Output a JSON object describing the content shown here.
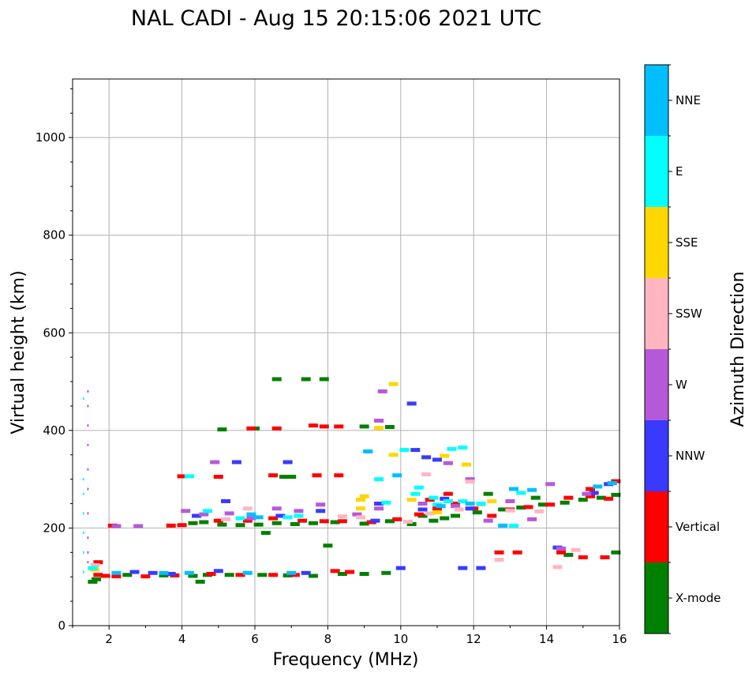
{
  "chart_data": {
    "type": "scatter",
    "title": "NAL CADI - Aug 15 20:15:06 2021 UTC",
    "xlabel": "Frequency (MHz)",
    "ylabel": "Virtual height (km)",
    "xlim": [
      1,
      16
    ],
    "ylim": [
      0,
      1120
    ],
    "x_ticks": [
      2,
      4,
      6,
      8,
      10,
      12,
      14,
      16
    ],
    "x_tick_labels": [
      "2",
      "4",
      "6",
      "8",
      "10",
      "12",
      "14",
      "16"
    ],
    "y_ticks": [
      0,
      200,
      400,
      600,
      800,
      1000
    ],
    "y_tick_labels": [
      "0",
      "200",
      "400",
      "600",
      "800",
      "1000"
    ],
    "grid": true,
    "colorbar": {
      "label": "Azimuth Direction",
      "categories": [
        {
          "name": "X-mode",
          "color": "#008000"
        },
        {
          "name": "Vertical",
          "color": "#ff0000"
        },
        {
          "name": "NNW",
          "color": "#3a3aff"
        },
        {
          "name": "W",
          "color": "#b659d9"
        },
        {
          "name": "SSW",
          "color": "#ffb6c1"
        },
        {
          "name": "SSE",
          "color": "#ffd700"
        },
        {
          "name": "E",
          "color": "#00ffff"
        },
        {
          "name": "NNE",
          "color": "#00bfff"
        }
      ]
    },
    "series": [
      {
        "name": "X-mode",
        "points": [
          [
            1.55,
            90
          ],
          [
            1.65,
            95
          ],
          [
            2.5,
            104
          ],
          [
            3.5,
            103
          ],
          [
            4.3,
            102
          ],
          [
            4.7,
            104
          ],
          [
            5.3,
            104
          ],
          [
            6.2,
            104
          ],
          [
            6.9,
            103
          ],
          [
            7.6,
            102
          ],
          [
            8.4,
            106
          ],
          [
            9.0,
            106
          ],
          [
            9.6,
            108
          ],
          [
            4.3,
            210
          ],
          [
            4.6,
            212
          ],
          [
            5.1,
            207
          ],
          [
            5.6,
            206
          ],
          [
            6.1,
            207
          ],
          [
            6.6,
            210
          ],
          [
            7.1,
            208
          ],
          [
            7.6,
            210
          ],
          [
            8.2,
            212
          ],
          [
            9.0,
            209
          ],
          [
            9.7,
            214
          ],
          [
            10.3,
            208
          ],
          [
            10.9,
            215
          ],
          [
            11.5,
            225
          ],
          [
            12.1,
            232
          ],
          [
            12.8,
            238
          ],
          [
            13.3,
            242
          ],
          [
            13.9,
            248
          ],
          [
            14.5,
            252
          ],
          [
            15.0,
            258
          ],
          [
            15.5,
            262
          ],
          [
            15.9,
            268
          ],
          [
            6.6,
            505
          ],
          [
            7.4,
            505
          ],
          [
            7.9,
            505
          ],
          [
            9.0,
            408
          ],
          [
            9.7,
            407
          ],
          [
            6.8,
            305
          ],
          [
            7.0,
            305
          ],
          [
            6.0,
            404
          ],
          [
            5.1,
            402
          ],
          [
            6.3,
            190
          ],
          [
            15.9,
            150
          ],
          [
            14.6,
            145
          ],
          [
            8.0,
            164
          ],
          [
            4.5,
            90
          ],
          [
            10.6,
            225
          ],
          [
            11.2,
            220
          ],
          [
            12.4,
            270
          ],
          [
            13.7,
            262
          ]
        ]
      },
      {
        "name": "Vertical",
        "points": [
          [
            1.7,
            104
          ],
          [
            1.9,
            102
          ],
          [
            2.2,
            101
          ],
          [
            3.0,
            101
          ],
          [
            3.8,
            103
          ],
          [
            4.8,
            106
          ],
          [
            5.6,
            104
          ],
          [
            6.5,
            104
          ],
          [
            7.1,
            104
          ],
          [
            8.2,
            112
          ],
          [
            8.6,
            110
          ],
          [
            3.7,
            205
          ],
          [
            4.0,
            206
          ],
          [
            5.0,
            215
          ],
          [
            5.8,
            215
          ],
          [
            6.5,
            220
          ],
          [
            7.3,
            215
          ],
          [
            7.9,
            214
          ],
          [
            8.4,
            214
          ],
          [
            9.2,
            212
          ],
          [
            9.9,
            218
          ],
          [
            10.5,
            228
          ],
          [
            11.0,
            240
          ],
          [
            11.5,
            250
          ],
          [
            12.0,
            240
          ],
          [
            12.5,
            225
          ],
          [
            13.0,
            238
          ],
          [
            13.5,
            243
          ],
          [
            14.1,
            248
          ],
          [
            14.6,
            262
          ],
          [
            15.2,
            265
          ],
          [
            15.7,
            260
          ],
          [
            15.9,
            296
          ],
          [
            7.9,
            408
          ],
          [
            8.3,
            408
          ],
          [
            6.6,
            404
          ],
          [
            7.6,
            410
          ],
          [
            7.7,
            308
          ],
          [
            8.3,
            308
          ],
          [
            6.5,
            308
          ],
          [
            5.9,
            404
          ],
          [
            4.0,
            306
          ],
          [
            5.0,
            305
          ],
          [
            12.7,
            150
          ],
          [
            13.2,
            150
          ],
          [
            14.4,
            150
          ],
          [
            15.0,
            140
          ],
          [
            15.6,
            140
          ],
          [
            15.2,
            280
          ],
          [
            11.3,
            270
          ],
          [
            10.8,
            258
          ],
          [
            2.1,
            205
          ],
          [
            1.7,
            130
          ]
        ]
      },
      {
        "name": "NNW",
        "points": [
          [
            2.7,
            110
          ],
          [
            3.2,
            108
          ],
          [
            3.7,
            106
          ],
          [
            5.0,
            112
          ],
          [
            7.4,
            108
          ],
          [
            10.0,
            118
          ],
          [
            10.4,
            360
          ],
          [
            10.7,
            345
          ],
          [
            11.0,
            340
          ],
          [
            10.3,
            455
          ],
          [
            5.5,
            335
          ],
          [
            6.9,
            335
          ],
          [
            4.4,
            225
          ],
          [
            5.2,
            255
          ],
          [
            6.7,
            225
          ],
          [
            7.8,
            235
          ],
          [
            9.3,
            215
          ],
          [
            10.6,
            238
          ],
          [
            11.2,
            260
          ],
          [
            11.9,
            240
          ],
          [
            12.2,
            118
          ],
          [
            11.7,
            118
          ],
          [
            14.3,
            160
          ],
          [
            15.3,
            272
          ],
          [
            15.7,
            290
          ],
          [
            9.4,
            250
          ]
        ]
      },
      {
        "name": "W",
        "points": [
          [
            1.42,
            480
          ],
          [
            1.42,
            450
          ],
          [
            1.42,
            410
          ],
          [
            1.42,
            370
          ],
          [
            1.42,
            320
          ],
          [
            1.42,
            280
          ],
          [
            1.42,
            230
          ],
          [
            1.42,
            180
          ],
          [
            1.42,
            150
          ],
          [
            1.42,
            130
          ],
          [
            4.1,
            235
          ],
          [
            4.6,
            228
          ],
          [
            5.3,
            230
          ],
          [
            5.9,
            220
          ],
          [
            6.6,
            240
          ],
          [
            7.2,
            235
          ],
          [
            7.8,
            248
          ],
          [
            8.8,
            228
          ],
          [
            9.4,
            240
          ],
          [
            9.5,
            480
          ],
          [
            9.4,
            420
          ],
          [
            10.6,
            250
          ],
          [
            11.5,
            245
          ],
          [
            11.9,
            300
          ],
          [
            12.4,
            215
          ],
          [
            13.0,
            255
          ],
          [
            13.6,
            218
          ],
          [
            14.1,
            290
          ],
          [
            14.4,
            158
          ],
          [
            15.1,
            270
          ],
          [
            2.8,
            204
          ],
          [
            2.2,
            204
          ],
          [
            11.3,
            333
          ],
          [
            4.9,
            335
          ]
        ]
      },
      {
        "name": "SSW",
        "points": [
          [
            1.62,
            124
          ],
          [
            8.4,
            224
          ],
          [
            8.9,
            222
          ],
          [
            10.8,
            230
          ],
          [
            11.6,
            238
          ],
          [
            12.2,
            248
          ],
          [
            13.0,
            236
          ],
          [
            13.8,
            234
          ],
          [
            14.3,
            120
          ],
          [
            14.8,
            155
          ],
          [
            12.7,
            135
          ],
          [
            10.2,
            213
          ],
          [
            11.9,
            295
          ],
          [
            10.7,
            310
          ],
          [
            5.2,
            218
          ],
          [
            5.8,
            240
          ]
        ]
      },
      {
        "name": "SSE",
        "points": [
          [
            1.6,
            115
          ],
          [
            8.9,
            240
          ],
          [
            9.0,
            265
          ],
          [
            8.9,
            258
          ],
          [
            9.8,
            350
          ],
          [
            9.8,
            495
          ],
          [
            11.2,
            348
          ],
          [
            11.8,
            330
          ],
          [
            11.0,
            232
          ],
          [
            10.3,
            258
          ],
          [
            12.5,
            255
          ],
          [
            9.4,
            405
          ]
        ]
      },
      {
        "name": "E",
        "points": [
          [
            1.3,
            110
          ],
          [
            1.3,
            150
          ],
          [
            1.3,
            190
          ],
          [
            1.3,
            230
          ],
          [
            1.3,
            270
          ],
          [
            1.3,
            300
          ],
          [
            1.3,
            465
          ],
          [
            1.55,
            118
          ],
          [
            4.2,
            306
          ],
          [
            9.4,
            300
          ],
          [
            9.1,
            357
          ],
          [
            10.1,
            360
          ],
          [
            10.4,
            270
          ],
          [
            10.9,
            262
          ],
          [
            11.3,
            255
          ],
          [
            11.7,
            255
          ],
          [
            12.2,
            250
          ],
          [
            13.3,
            272
          ],
          [
            13.1,
            205
          ],
          [
            10.5,
            283
          ],
          [
            11.4,
            362
          ],
          [
            11.7,
            365
          ],
          [
            6.9,
            222
          ],
          [
            7.2,
            225
          ],
          [
            4.7,
            235
          ],
          [
            5.6,
            220
          ],
          [
            9.6,
            252
          ],
          [
            11.0,
            248
          ]
        ]
      },
      {
        "name": "NNE",
        "points": [
          [
            2.2,
            108
          ],
          [
            3.5,
            108
          ],
          [
            4.2,
            108
          ],
          [
            5.8,
            108
          ],
          [
            7.0,
            108
          ],
          [
            9.1,
            357
          ],
          [
            9.9,
            308
          ],
          [
            11.1,
            245
          ],
          [
            11.9,
            250
          ],
          [
            13.1,
            280
          ],
          [
            13.6,
            278
          ],
          [
            15.4,
            285
          ],
          [
            15.8,
            292
          ],
          [
            6.1,
            222
          ],
          [
            5.9,
            228
          ],
          [
            12.8,
            205
          ]
        ]
      }
    ]
  }
}
